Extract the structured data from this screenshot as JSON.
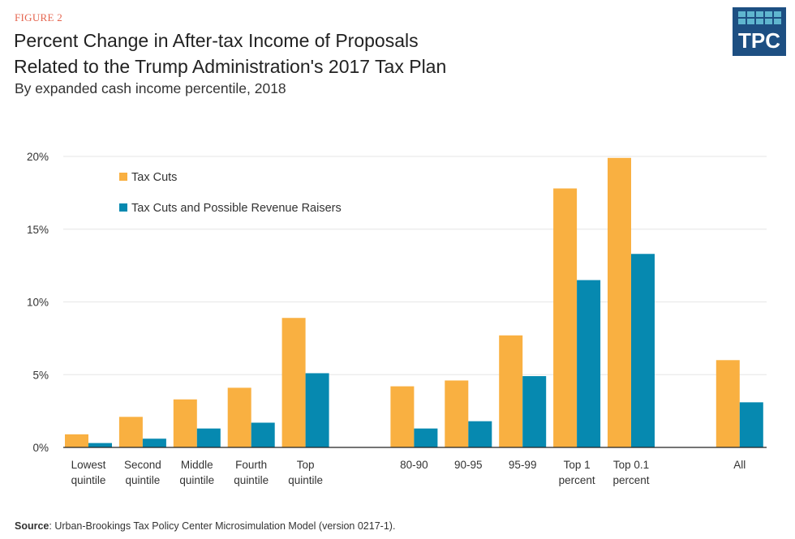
{
  "header": {
    "figure_label": "FIGURE 2",
    "title_line1": "Percent Change in After-tax Income of Proposals",
    "title_line2": "Related to the Trump Administration's 2017 Tax Plan",
    "subtitle": "By expanded cash income percentile, 2018",
    "logo_text": "TPC"
  },
  "footer": {
    "source_label": "Source",
    "source_text": ": Urban-Brookings Tax Policy Center Microsimulation Model (version 0217-1)."
  },
  "colors": {
    "tax_cuts": "#f9b041",
    "revenue_raisers": "#0689b0",
    "grid": "#e6e6e6"
  },
  "chart_data": {
    "type": "bar",
    "title": "Percent Change in After-tax Income of Proposals Related to the Trump Administration's 2017 Tax Plan",
    "xlabel": "",
    "ylabel": "",
    "ylim": [
      0,
      20
    ],
    "yticks": [
      "0%",
      "5%",
      "10%",
      "15%",
      "20%"
    ],
    "ytick_values": [
      0,
      5,
      10,
      15,
      20
    ],
    "grid": true,
    "legend_placement": "top-left",
    "categories": [
      [
        "Lowest",
        "quintile"
      ],
      [
        "Second",
        "quintile"
      ],
      [
        "Middle",
        "quintile"
      ],
      [
        "Fourth",
        "quintile"
      ],
      [
        "Top",
        "quintile"
      ],
      [
        "80-90"
      ],
      [
        "90-95"
      ],
      [
        "95-99"
      ],
      [
        "Top 1",
        "percent"
      ],
      [
        "Top 0.1",
        "percent"
      ],
      [
        "All"
      ]
    ],
    "slots": [
      0,
      1,
      2,
      3,
      4,
      6,
      7,
      8,
      9,
      10,
      12
    ],
    "series": [
      {
        "name": "Tax Cuts",
        "values": [
          0.9,
          2.1,
          3.3,
          4.1,
          8.9,
          4.2,
          4.6,
          7.7,
          17.8,
          19.9,
          6.0
        ]
      },
      {
        "name": "Tax Cuts and Possible Revenue Raisers",
        "values": [
          0.3,
          0.6,
          1.3,
          1.7,
          5.1,
          1.3,
          1.8,
          4.9,
          11.5,
          13.3,
          3.1
        ]
      }
    ]
  }
}
